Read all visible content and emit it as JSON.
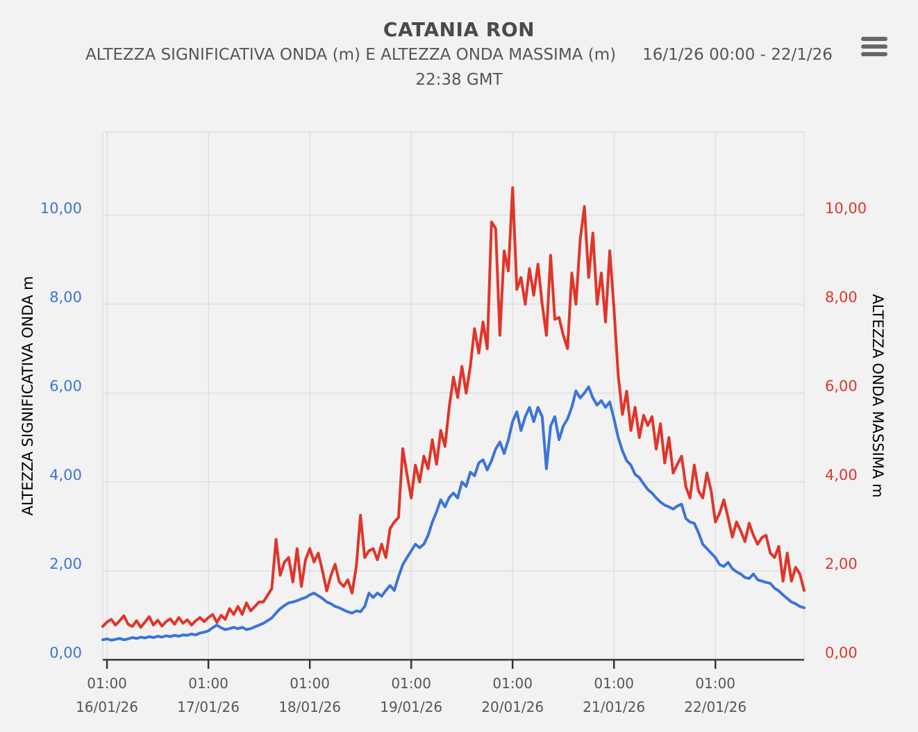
{
  "header": {
    "title": "CATANIA RON",
    "subtitle_measure": "ALTEZZA SIGNIFICATIVA ONDA (m) E ALTEZZA ONDA MASSIMA (m)",
    "subtitle_period": "16/1/26 00:00 - 22/1/26",
    "subtitle_period_line2": "22:38 GMT"
  },
  "colors": {
    "background": "#f2f2f2",
    "grid": "#d7d7d7",
    "plot_border": "#d7d7d7",
    "x_axis_line": "#333333",
    "title_text": "#4a4a4a",
    "subtitle_text": "#555555",
    "x_label_text": "#555555",
    "blue_series": "#3c74d8",
    "red_series": "#e0352a",
    "menu_icon": "#676767"
  },
  "chart_data": {
    "type": "line",
    "title": "CATANIA RON",
    "subtitle": "ALTEZZA SIGNIFICATIVA ONDA (m) E ALTEZZA ONDA MASSIMA (m)  16/1/26 00:00 - 22/1/26 22:38 GMT",
    "legend": "none",
    "grid": true,
    "x_unit": "hours since 16/01/26 00:00 GMT",
    "x_range_hours": [
      0,
      166
    ],
    "x_ticks": [
      {
        "hour": 1,
        "time": "01:00",
        "date": "16/01/26"
      },
      {
        "hour": 25,
        "time": "01:00",
        "date": "17/01/26"
      },
      {
        "hour": 49,
        "time": "01:00",
        "date": "18/01/26"
      },
      {
        "hour": 73,
        "time": "01:00",
        "date": "19/01/26"
      },
      {
        "hour": 97,
        "time": "01:00",
        "date": "20/01/26"
      },
      {
        "hour": 121,
        "time": "01:00",
        "date": "21/01/26"
      },
      {
        "hour": 145,
        "time": "01:00",
        "date": "22/01/26"
      }
    ],
    "y_left": {
      "label": "ALTEZZA SIGNIFICATIVA ONDA m",
      "color": "#3c74d8",
      "min": 0,
      "max": 11.875,
      "ticks": [
        {
          "value": 0,
          "label": "0,00"
        },
        {
          "value": 2,
          "label": "2,00"
        },
        {
          "value": 4,
          "label": "4,00"
        },
        {
          "value": 6,
          "label": "6,00"
        },
        {
          "value": 8,
          "label": "8,00"
        },
        {
          "value": 10,
          "label": "10,00"
        }
      ]
    },
    "y_right": {
      "label": "ALTEZZA ONDA MASSIMA m",
      "color": "#e0352a",
      "min": 0,
      "max": 11.875,
      "ticks": [
        {
          "value": 0,
          "label": "0,00"
        },
        {
          "value": 2,
          "label": "2,00"
        },
        {
          "value": 4,
          "label": "4,00"
        },
        {
          "value": 6,
          "label": "6,00"
        },
        {
          "value": 8,
          "label": "8,00"
        },
        {
          "value": 10,
          "label": "10,00"
        }
      ]
    },
    "series": [
      {
        "name": "ALTEZZA SIGNIFICATIVA ONDA (m)",
        "axis": "left",
        "color": "#3c74d8",
        "step_hours": 1,
        "values": [
          0.45,
          0.47,
          0.44,
          0.46,
          0.48,
          0.45,
          0.47,
          0.5,
          0.48,
          0.51,
          0.49,
          0.52,
          0.5,
          0.53,
          0.51,
          0.54,
          0.52,
          0.55,
          0.53,
          0.56,
          0.55,
          0.58,
          0.56,
          0.6,
          0.62,
          0.65,
          0.72,
          0.78,
          0.72,
          0.68,
          0.7,
          0.73,
          0.7,
          0.73,
          0.68,
          0.7,
          0.74,
          0.78,
          0.82,
          0.88,
          0.94,
          1.05,
          1.15,
          1.22,
          1.28,
          1.3,
          1.33,
          1.37,
          1.4,
          1.46,
          1.5,
          1.44,
          1.38,
          1.3,
          1.26,
          1.2,
          1.17,
          1.12,
          1.08,
          1.05,
          1.1,
          1.08,
          1.2,
          1.5,
          1.4,
          1.5,
          1.43,
          1.56,
          1.67,
          1.56,
          1.87,
          2.14,
          2.3,
          2.45,
          2.6,
          2.52,
          2.6,
          2.8,
          3.1,
          3.33,
          3.6,
          3.44,
          3.65,
          3.75,
          3.64,
          4.0,
          3.9,
          4.22,
          4.14,
          4.43,
          4.5,
          4.27,
          4.48,
          4.74,
          4.9,
          4.64,
          4.95,
          5.36,
          5.58,
          5.16,
          5.47,
          5.68,
          5.36,
          5.68,
          5.47,
          4.3,
          5.26,
          5.47,
          4.95,
          5.26,
          5.42,
          5.68,
          6.05,
          5.89,
          6.0,
          6.14,
          5.89,
          5.73,
          5.83,
          5.68,
          5.8,
          5.42,
          5.0,
          4.7,
          4.48,
          4.38,
          4.17,
          4.1,
          3.96,
          3.83,
          3.75,
          3.64,
          3.55,
          3.48,
          3.44,
          3.39,
          3.46,
          3.5,
          3.18,
          3.1,
          3.07,
          2.86,
          2.6,
          2.5,
          2.4,
          2.3,
          2.14,
          2.1,
          2.19,
          2.05,
          1.98,
          1.93,
          1.85,
          1.83,
          1.93,
          1.8,
          1.77,
          1.74,
          1.72,
          1.61,
          1.55,
          1.46,
          1.38,
          1.3,
          1.26,
          1.2,
          1.17
        ]
      },
      {
        "name": "ALTEZZA ONDA MASSIMA (m)",
        "axis": "right",
        "color": "#e0352a",
        "step_hours": 1,
        "values": [
          0.75,
          0.85,
          0.91,
          0.78,
          0.88,
          0.99,
          0.8,
          0.75,
          0.88,
          0.73,
          0.85,
          0.97,
          0.78,
          0.89,
          0.76,
          0.86,
          0.92,
          0.8,
          0.95,
          0.82,
          0.9,
          0.78,
          0.88,
          0.95,
          0.86,
          0.95,
          1.02,
          0.84,
          1.0,
          0.91,
          1.15,
          1.02,
          1.2,
          1.02,
          1.28,
          1.1,
          1.2,
          1.3,
          1.3,
          1.45,
          1.6,
          2.71,
          1.9,
          2.2,
          2.3,
          1.75,
          2.5,
          1.65,
          2.25,
          2.5,
          2.2,
          2.4,
          2.0,
          1.55,
          1.9,
          2.15,
          1.75,
          1.65,
          1.8,
          1.5,
          2.1,
          3.25,
          2.3,
          2.45,
          2.5,
          2.25,
          2.6,
          2.3,
          2.95,
          3.1,
          3.2,
          4.75,
          4.17,
          3.64,
          4.38,
          4.0,
          4.58,
          4.3,
          4.95,
          4.4,
          5.16,
          4.8,
          5.68,
          6.36,
          5.9,
          6.6,
          6.0,
          6.6,
          7.45,
          6.9,
          7.6,
          7.0,
          9.85,
          9.7,
          7.3,
          9.2,
          8.75,
          10.62,
          8.33,
          8.6,
          8.0,
          8.8,
          8.2,
          8.9,
          8.0,
          7.3,
          9.1,
          7.66,
          7.7,
          7.3,
          7.0,
          8.7,
          8.0,
          9.45,
          10.2,
          8.6,
          9.6,
          8.0,
          8.7,
          7.6,
          9.2,
          7.9,
          6.4,
          5.52,
          6.04,
          5.16,
          5.68,
          5.0,
          5.5,
          5.27,
          5.47,
          4.74,
          5.31,
          4.43,
          5.0,
          4.2,
          4.4,
          4.58,
          3.9,
          3.64,
          4.38,
          3.8,
          3.64,
          4.2,
          3.8,
          3.1,
          3.3,
          3.6,
          3.2,
          2.76,
          3.1,
          2.9,
          2.66,
          3.07,
          2.8,
          2.6,
          2.75,
          2.8,
          2.4,
          2.3,
          2.55,
          1.77,
          2.4,
          1.77,
          2.08,
          1.93,
          1.56
        ]
      }
    ]
  }
}
